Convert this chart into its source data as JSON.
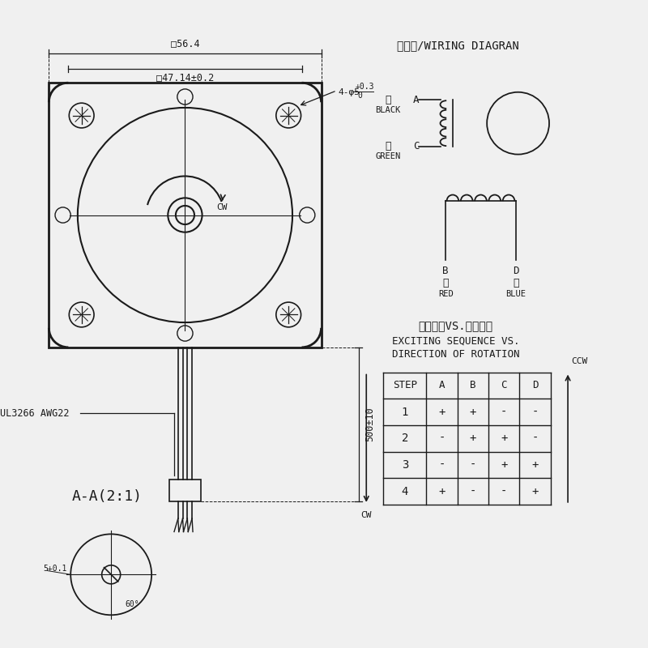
{
  "bg_color": "#f0f0f0",
  "line_color": "#1a1a1a",
  "title_wiring": "接线图/WIRING DIAGRAN",
  "title_exciting": "励磁顺序VS.旋转方向",
  "subtitle_exciting1": "EXCITING SEQUENCE VS.",
  "subtitle_exciting2": "DIRECTION OF ROTATION",
  "dim_top": "□56.4",
  "dim_mid": "□47.14±0.2",
  "dim_wire_len": "500±10",
  "wire_label": "UL3266 AWG22",
  "section_label": "A-A(2:1)",
  "table_headers": [
    "STEP",
    "A",
    "B",
    "C",
    "D"
  ],
  "table_data": [
    [
      "1",
      "+",
      "+",
      "-",
      "-"
    ],
    [
      "2",
      "-",
      "+",
      "+",
      "-"
    ],
    [
      "3",
      "-",
      "-",
      "+",
      "+"
    ],
    [
      "4",
      "+",
      "-",
      "-",
      "+"
    ]
  ]
}
